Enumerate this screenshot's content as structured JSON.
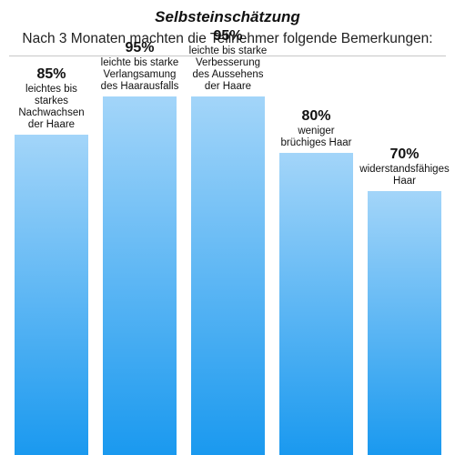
{
  "title": "Selbsteinschätzung",
  "subtitle": "Nach 3 Monaten machten die Teilnehmer folgende Bemerkungen:",
  "colors": {
    "bar_top": "#a3d5f9",
    "bar_bottom": "#1a99ef"
  },
  "chart_data": {
    "type": "bar",
    "title": "Selbsteinschätzung",
    "subtitle": "Nach 3 Monaten machten die Teilnehmer folgende Bemerkungen:",
    "categories": [
      "leichtes bis\nstarkes\nNachwachsen\nder Haare",
      "leichte bis starke\nVerlangsamung\ndes Haarausfalls",
      "leichte bis starke\nVerbesserung\ndes Aussehens\nder Haare",
      "weniger\nbrüchiges Haar",
      "widerstandsfähiges\nHaar"
    ],
    "values": [
      85,
      95,
      95,
      80,
      70
    ],
    "value_labels": [
      "85%",
      "95%",
      "95%",
      "80%",
      "70%"
    ],
    "ylim": [
      0,
      100
    ],
    "grid": false,
    "legend": "none"
  }
}
